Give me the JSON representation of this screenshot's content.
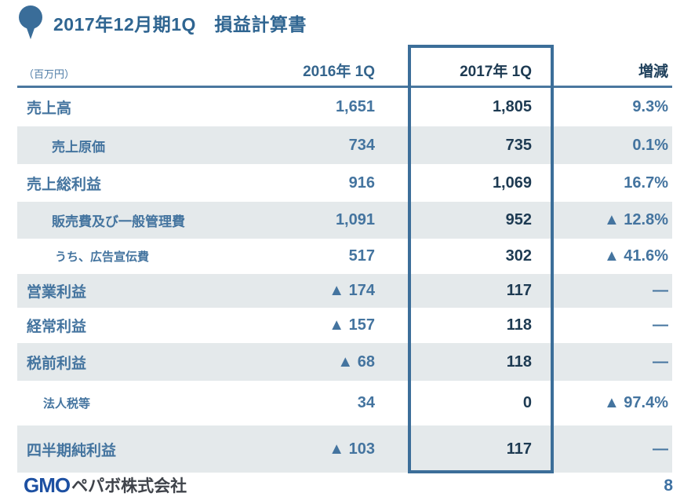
{
  "title": {
    "text": "2017年12月期1Q　損益計算書"
  },
  "table": {
    "unit_label": "（百万円）",
    "columns": [
      "2016年 1Q",
      "2017年 1Q",
      "増減"
    ],
    "rows": [
      {
        "label": "売上高",
        "indent": 0,
        "y2016": "1,651",
        "y2017": "1,805",
        "delta": "9.3%"
      },
      {
        "label": "売上原価",
        "indent": 1,
        "y2016": "734",
        "y2017": "735",
        "delta": "0.1%"
      },
      {
        "label": "売上総利益",
        "indent": 0,
        "y2016": "916",
        "y2017": "1,069",
        "delta": "16.7%"
      },
      {
        "label": "販売費及び一般管理費",
        "indent": 1,
        "y2016": "1,091",
        "y2017": "952",
        "delta": "▲ 12.8%"
      },
      {
        "label": "うち、広告宣伝費",
        "indent": 2,
        "y2016": "517",
        "y2017": "302",
        "delta": "▲ 41.6%"
      },
      {
        "label": "営業利益",
        "indent": 0,
        "y2016": "▲ 174",
        "y2017": "117",
        "delta": "—"
      },
      {
        "label": "経常利益",
        "indent": 0,
        "y2016": "▲ 157",
        "y2017": "118",
        "delta": "—"
      },
      {
        "label": "税前利益",
        "indent": 0,
        "y2016": "▲ 68",
        "y2017": "118",
        "delta": "—"
      },
      {
        "label": "法人税等",
        "indent": 3,
        "y2016": "34",
        "y2017": "0",
        "delta": "▲ 97.4%"
      },
      {
        "label": "四半期純利益",
        "indent": 0,
        "y2016": "▲ 103",
        "y2017": "117",
        "delta": "—"
      }
    ]
  },
  "footer": {
    "logo_gmo": "GMO",
    "logo_company": "ペパボ株式会社",
    "page_number": "8"
  },
  "icons": {
    "title_icon": "balloon-icon"
  },
  "colors": {
    "accent_blue": "#44749f",
    "dark_navy": "#1d3a52",
    "row_gray": "#e4e9eb",
    "highlight_box_border": "#3c6e99",
    "title_blue": "#2f6591",
    "logo_blue": "#1d50a2",
    "logo_gray": "#3f434a"
  }
}
